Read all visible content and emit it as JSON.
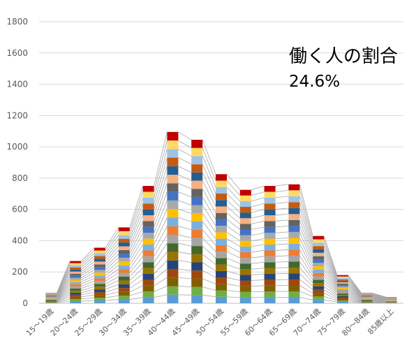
{
  "chart_data": {
    "type": "bar",
    "stacked": true,
    "categories": [
      "15～19歳",
      "20～24歳",
      "25～29歳",
      "30～34歳",
      "35～39歳",
      "40～44歳",
      "45～49歳",
      "50～54歳",
      "55～59歳",
      "60～64歳",
      "65～69歳",
      "70～74歳",
      "75～79歳",
      "80～84歳",
      "85歳以上"
    ],
    "totals": [
      65,
      270,
      355,
      485,
      750,
      1095,
      1045,
      825,
      725,
      750,
      760,
      430,
      180,
      65,
      40
    ],
    "segment_colors": [
      "#5b9bd5",
      "#70ad47",
      "#7f6000",
      "#9e480e",
      "#264478",
      "#997300",
      "#43682b",
      "#a5a5a5",
      "#ed7d31",
      "#7cafdd",
      "#ffc000",
      "#a9a9a9",
      "#4472c4",
      "#636363",
      "#f4b183",
      "#255e91",
      "#c55a11",
      "#9dc3e6",
      "#ffd966",
      "#c00000"
    ],
    "ylim": [
      0,
      1800
    ],
    "yticks": [
      0,
      200,
      400,
      600,
      800,
      1000,
      1200,
      1400,
      1600,
      1800
    ],
    "grid": true,
    "annotations": [
      "働く人の割合",
      "24.6%"
    ]
  }
}
